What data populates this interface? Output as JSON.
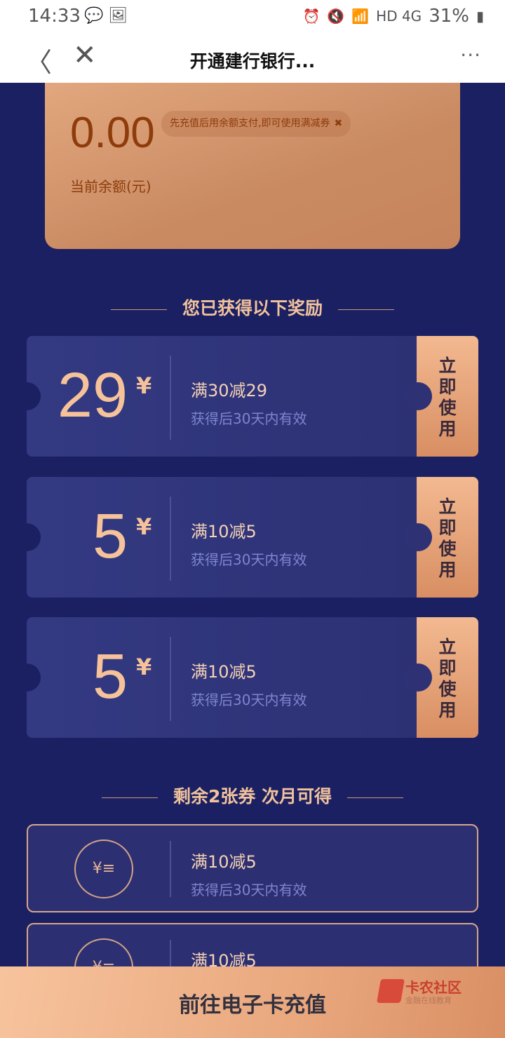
{
  "status": {
    "time": "14:33",
    "battery": "31%",
    "network": "HD 4G"
  },
  "nav": {
    "title": "开通建行银行...",
    "back": "〈",
    "close": "✕",
    "more": "···"
  },
  "balance": {
    "amount": "0.00",
    "tip": "先充值后用余额支付,即可使用满减券",
    "label": "当前余额(元)"
  },
  "section1": "您已获得以下奖励",
  "coupons": [
    {
      "value": "29",
      "currency": "¥",
      "title": "满30减29",
      "validity": "获得后30天内有效",
      "action": "立即使用"
    },
    {
      "value": "5",
      "currency": "¥",
      "title": "满10减5",
      "validity": "获得后30天内有效",
      "action": "立即使用"
    },
    {
      "value": "5",
      "currency": "¥",
      "title": "满10减5",
      "validity": "获得后30天内有效",
      "action": "立即使用"
    }
  ],
  "section2": "剩余2张券 次月可得",
  "locked": [
    {
      "title": "满10减5",
      "validity": "获得后30天内有效",
      "icon": "coins-icon"
    },
    {
      "title": "满10减5",
      "icon": "coins-icon"
    }
  ],
  "bottom": {
    "label": "前往电子卡充值"
  },
  "watermark": {
    "name": "卡农社区",
    "slogan": "金融在线教育"
  }
}
